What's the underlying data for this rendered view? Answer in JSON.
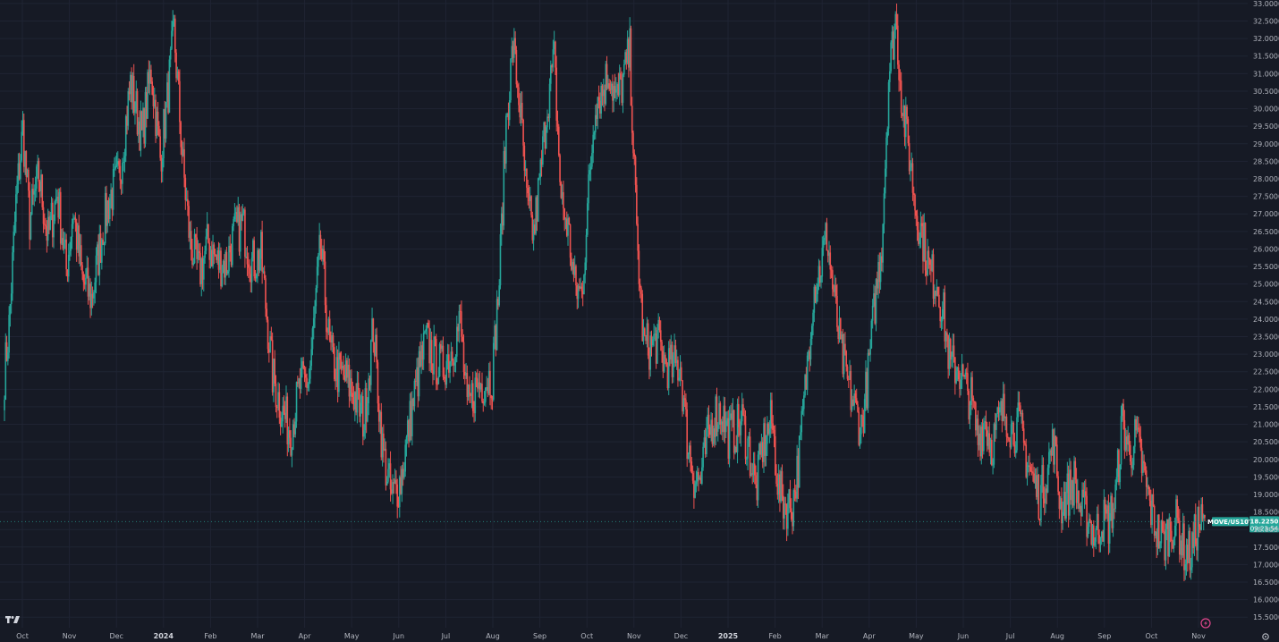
{
  "chart_data": {
    "type": "candlestick",
    "symbol": "MOVE/US10Y",
    "last_price": "18.2250",
    "countdown": "09:23:54",
    "y_range": [
      15.2,
      33.1
    ],
    "y_ticks": [
      "15.5000",
      "16.0000",
      "16.5000",
      "17.0000",
      "17.5000",
      "18.0000",
      "18.5000",
      "19.0000",
      "19.5000",
      "20.0000",
      "20.5000",
      "21.0000",
      "21.5000",
      "22.0000",
      "22.5000",
      "23.0000",
      "23.5000",
      "24.0000",
      "24.5000",
      "25.0000",
      "25.5000",
      "26.0000",
      "26.5000",
      "27.0000",
      "27.5000",
      "28.0000",
      "28.5000",
      "29.0000",
      "29.5000",
      "30.0000",
      "30.5000",
      "31.0000",
      "31.5000",
      "32.0000",
      "32.5000",
      "33.0000"
    ],
    "x_ticks": [
      {
        "label": "Oct",
        "bold": false
      },
      {
        "label": "Nov",
        "bold": false
      },
      {
        "label": "Dec",
        "bold": false
      },
      {
        "label": "2024",
        "bold": true
      },
      {
        "label": "Feb",
        "bold": false
      },
      {
        "label": "Mar",
        "bold": false
      },
      {
        "label": "Apr",
        "bold": false
      },
      {
        "label": "May",
        "bold": false
      },
      {
        "label": "Jun",
        "bold": false
      },
      {
        "label": "Jul",
        "bold": false
      },
      {
        "label": "Aug",
        "bold": false
      },
      {
        "label": "Sep",
        "bold": false
      },
      {
        "label": "Oct",
        "bold": false
      },
      {
        "label": "Nov",
        "bold": false
      },
      {
        "label": "Dec",
        "bold": false
      },
      {
        "label": "2025",
        "bold": true
      },
      {
        "label": "Feb",
        "bold": false
      },
      {
        "label": "Mar",
        "bold": false
      },
      {
        "label": "Apr",
        "bold": false
      },
      {
        "label": "May",
        "bold": false
      },
      {
        "label": "Jun",
        "bold": false
      },
      {
        "label": "Jul",
        "bold": false
      },
      {
        "label": "Aug",
        "bold": false
      },
      {
        "label": "Sep",
        "bold": false
      },
      {
        "label": "Oct",
        "bold": false
      },
      {
        "label": "Nov",
        "bold": false
      }
    ],
    "path_keypoints": [
      [
        0,
        22.4
      ],
      [
        4,
        23.8
      ],
      [
        10,
        27.3
      ],
      [
        16,
        29.4
      ],
      [
        22,
        26.8
      ],
      [
        30,
        28.1
      ],
      [
        38,
        26.3
      ],
      [
        46,
        27.6
      ],
      [
        54,
        25.4
      ],
      [
        60,
        27.1
      ],
      [
        68,
        25.1
      ],
      [
        76,
        24.6
      ],
      [
        86,
        26.6
      ],
      [
        92,
        27.5
      ],
      [
        100,
        28.0
      ],
      [
        110,
        30.7
      ],
      [
        120,
        29.2
      ],
      [
        128,
        31.1
      ],
      [
        136,
        28.6
      ],
      [
        142,
        30.2
      ],
      [
        148,
        32.2
      ],
      [
        156,
        28.3
      ],
      [
        162,
        26.2
      ],
      [
        170,
        25.3
      ],
      [
        178,
        26.2
      ],
      [
        186,
        25.6
      ],
      [
        194,
        25.6
      ],
      [
        200,
        26.4
      ],
      [
        208,
        26.7
      ],
      [
        216,
        25.6
      ],
      [
        224,
        25.8
      ],
      [
        234,
        22.4
      ],
      [
        242,
        21.4
      ],
      [
        250,
        20.8
      ],
      [
        258,
        22.1
      ],
      [
        266,
        22.3
      ],
      [
        270,
        23.8
      ],
      [
        276,
        26.1
      ],
      [
        284,
        23.1
      ],
      [
        290,
        22.5
      ],
      [
        298,
        22.3
      ],
      [
        306,
        21.8
      ],
      [
        314,
        21.1
      ],
      [
        322,
        23.8
      ],
      [
        330,
        20.3
      ],
      [
        338,
        18.9
      ],
      [
        346,
        19.4
      ],
      [
        354,
        21.1
      ],
      [
        360,
        22.2
      ],
      [
        368,
        23.4
      ],
      [
        376,
        22.8
      ],
      [
        382,
        22.6
      ],
      [
        390,
        23.1
      ],
      [
        398,
        23.9
      ],
      [
        404,
        21.4
      ],
      [
        412,
        22.1
      ],
      [
        418,
        22.2
      ],
      [
        426,
        22.4
      ],
      [
        432,
        25.1
      ],
      [
        438,
        29.6
      ],
      [
        444,
        31.8
      ],
      [
        450,
        30.1
      ],
      [
        456,
        27.3
      ],
      [
        462,
        26.4
      ],
      [
        468,
        28.1
      ],
      [
        474,
        30.2
      ],
      [
        480,
        31.4
      ],
      [
        486,
        27.4
      ],
      [
        492,
        26.6
      ],
      [
        498,
        24.9
      ],
      [
        504,
        24.7
      ],
      [
        510,
        27.6
      ],
      [
        516,
        30.3
      ],
      [
        522,
        30.5
      ],
      [
        528,
        31.1
      ],
      [
        534,
        30.2
      ],
      [
        540,
        30.8
      ],
      [
        546,
        31.6
      ],
      [
        552,
        26.4
      ],
      [
        558,
        23.3
      ],
      [
        564,
        23.2
      ],
      [
        570,
        23.4
      ],
      [
        576,
        22.8
      ],
      [
        582,
        22.6
      ],
      [
        590,
        22.7
      ],
      [
        596,
        20.6
      ],
      [
        602,
        19.5
      ],
      [
        608,
        19.4
      ],
      [
        614,
        20.6
      ],
      [
        620,
        21.3
      ],
      [
        626,
        21.4
      ],
      [
        632,
        20.7
      ],
      [
        638,
        20.8
      ],
      [
        644,
        21.1
      ],
      [
        650,
        20.3
      ],
      [
        656,
        19.1
      ],
      [
        662,
        20.4
      ],
      [
        670,
        21.1
      ],
      [
        676,
        19.1
      ],
      [
        682,
        18.7
      ],
      [
        688,
        18.7
      ],
      [
        694,
        20.1
      ],
      [
        700,
        22.3
      ],
      [
        706,
        24.8
      ],
      [
        712,
        25.4
      ],
      [
        718,
        26.4
      ],
      [
        724,
        24.7
      ],
      [
        730,
        23.1
      ],
      [
        736,
        22.2
      ],
      [
        742,
        21.5
      ],
      [
        748,
        20.9
      ],
      [
        754,
        22.4
      ],
      [
        760,
        24.5
      ],
      [
        766,
        26.2
      ],
      [
        772,
        30.9
      ],
      [
        778,
        32.6
      ],
      [
        784,
        30.1
      ],
      [
        790,
        28.7
      ],
      [
        796,
        27.1
      ],
      [
        802,
        26.3
      ],
      [
        808,
        25.3
      ],
      [
        814,
        25.1
      ],
      [
        820,
        24.1
      ],
      [
        826,
        22.6
      ],
      [
        832,
        22.7
      ],
      [
        838,
        22.1
      ],
      [
        844,
        21.7
      ],
      [
        850,
        20.6
      ],
      [
        856,
        21.1
      ],
      [
        862,
        20.4
      ],
      [
        868,
        21.1
      ],
      [
        874,
        21.4
      ],
      [
        880,
        20.8
      ],
      [
        886,
        21.0
      ],
      [
        892,
        20.1
      ],
      [
        898,
        19.4
      ],
      [
        904,
        18.9
      ],
      [
        910,
        19.7
      ],
      [
        916,
        20.5
      ],
      [
        922,
        18.7
      ],
      [
        928,
        19.0
      ],
      [
        934,
        19.4
      ],
      [
        940,
        18.5
      ],
      [
        946,
        18.4
      ],
      [
        952,
        17.8
      ],
      [
        958,
        18.3
      ],
      [
        964,
        18.2
      ],
      [
        970,
        18.9
      ],
      [
        976,
        21.1
      ],
      [
        982,
        20.2
      ],
      [
        988,
        20.6
      ],
      [
        994,
        19.7
      ],
      [
        1000,
        18.7
      ],
      [
        1006,
        18.0
      ],
      [
        1012,
        17.6
      ],
      [
        1018,
        18.1
      ],
      [
        1024,
        18.2
      ],
      [
        1030,
        17.4
      ],
      [
        1036,
        17.3
      ],
      [
        1042,
        18.2
      ],
      [
        1048,
        18.1
      ]
    ]
  }
}
